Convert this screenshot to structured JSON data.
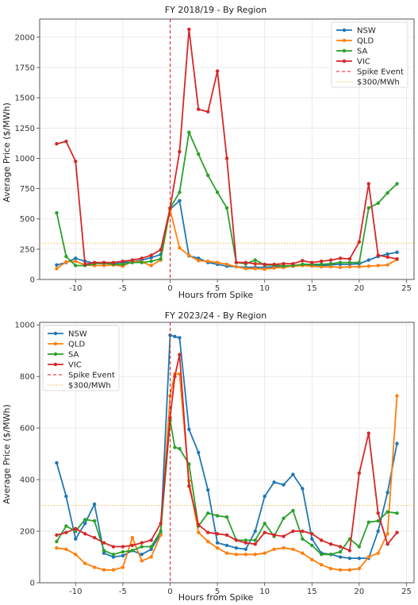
{
  "colors": {
    "NSW": "#1f77b4",
    "QLD": "#ff7f0e",
    "SA": "#2ca02c",
    "VIC": "#d62728",
    "spike": "#e41a1c",
    "threshold": "#f2b84b"
  },
  "chart_data": [
    {
      "type": "line",
      "title": "FY 2018/19 - By Region",
      "xlabel": "Hours from Spike",
      "ylabel": "Average Price ($/MWh)",
      "xlim": [
        -13.8,
        25.8
      ],
      "ylim": [
        0,
        2150
      ],
      "xticks": [
        -10,
        -5,
        0,
        5,
        10,
        15,
        20,
        25
      ],
      "yticks": [
        0,
        250,
        500,
        750,
        1000,
        1250,
        1500,
        1750,
        2000
      ],
      "grid": true,
      "legend_position": "top-right",
      "legend": [
        "NSW",
        "QLD",
        "SA",
        "VIC",
        "Spike Event",
        "$300/MWh"
      ],
      "spike_x": 0,
      "threshold_y": 300,
      "x": [
        -12,
        -11,
        -10,
        -9,
        -8,
        -7,
        -6,
        -5,
        -4,
        -3,
        -2,
        -1,
        0,
        1,
        2,
        3,
        4,
        5,
        6,
        7,
        8,
        9,
        10,
        11,
        12,
        13,
        14,
        15,
        16,
        17,
        18,
        19,
        20,
        21,
        22,
        23,
        24
      ],
      "series": [
        {
          "name": "NSW",
          "values": [
            120,
            140,
            175,
            150,
            135,
            130,
            135,
            140,
            145,
            160,
            180,
            205,
            580,
            650,
            195,
            175,
            140,
            125,
            110,
            105,
            100,
            100,
            100,
            105,
            110,
            110,
            120,
            120,
            115,
            120,
            125,
            125,
            130,
            160,
            190,
            210,
            225
          ]
        },
        {
          "name": "QLD",
          "values": [
            90,
            145,
            150,
            120,
            115,
            115,
            120,
            110,
            150,
            145,
            115,
            160,
            575,
            260,
            200,
            155,
            150,
            140,
            125,
            105,
            90,
            90,
            85,
            95,
            100,
            110,
            115,
            110,
            105,
            105,
            100,
            105,
            105,
            110,
            115,
            120,
            165
          ]
        },
        {
          "name": "SA",
          "values": [
            550,
            190,
            115,
            115,
            130,
            135,
            125,
            125,
            140,
            140,
            150,
            170,
            590,
            720,
            1215,
            1035,
            860,
            720,
            590,
            140,
            130,
            160,
            120,
            120,
            110,
            115,
            125,
            125,
            125,
            130,
            140,
            140,
            140,
            590,
            630,
            715,
            790
          ]
        },
        {
          "name": "VIC",
          "values": [
            1120,
            1140,
            975,
            125,
            140,
            140,
            140,
            150,
            160,
            175,
            200,
            245,
            590,
            1055,
            2065,
            1405,
            1385,
            1720,
            1000,
            140,
            140,
            130,
            125,
            125,
            130,
            130,
            155,
            140,
            150,
            160,
            175,
            170,
            310,
            790,
            200,
            185,
            170
          ]
        }
      ]
    },
    {
      "type": "line",
      "title": "FY 2023/24 - By Region",
      "xlabel": "Hours from Spike",
      "ylabel": "Average Price ($/MWh)",
      "xlim": [
        -13.8,
        25.8
      ],
      "ylim": [
        0,
        1010
      ],
      "xticks": [
        -10,
        -5,
        0,
        5,
        10,
        15,
        20,
        25
      ],
      "yticks": [
        0,
        200,
        400,
        600,
        800,
        1000
      ],
      "grid": true,
      "legend_position": "top-left",
      "legend": [
        "NSW",
        "QLD",
        "SA",
        "VIC",
        "Spike Event",
        "$300/MWh"
      ],
      "spike_x": 0,
      "threshold_y": 300,
      "x": [
        -12,
        -11,
        -10,
        -9,
        -8,
        -7,
        -6,
        -5,
        -4,
        -3,
        -2,
        -1,
        0,
        0.5,
        1,
        2,
        3,
        4,
        5,
        6,
        7,
        8,
        9,
        10,
        11,
        12,
        13,
        14,
        15,
        16,
        17,
        18,
        19,
        20,
        21,
        22,
        23,
        24
      ],
      "series": [
        {
          "name": "NSW",
          "values": [
            465,
            335,
            170,
            230,
            305,
            115,
            100,
            105,
            125,
            110,
            130,
            190,
            960,
            955,
            950,
            595,
            505,
            360,
            155,
            145,
            135,
            130,
            200,
            335,
            390,
            380,
            420,
            365,
            170,
            115,
            110,
            100,
            95,
            95,
            95,
            200,
            350,
            540
          ]
        },
        {
          "name": "QLD",
          "values": [
            135,
            130,
            110,
            75,
            60,
            50,
            50,
            60,
            175,
            85,
            100,
            185,
            725,
            810,
            810,
            395,
            195,
            160,
            135,
            115,
            110,
            110,
            110,
            115,
            130,
            135,
            130,
            115,
            90,
            70,
            55,
            50,
            50,
            55,
            100,
            115,
            190,
            725
          ]
        },
        {
          "name": "SA",
          "values": [
            160,
            220,
            200,
            245,
            240,
            125,
            110,
            120,
            125,
            140,
            140,
            200,
            630,
            525,
            520,
            460,
            220,
            270,
            260,
            255,
            165,
            165,
            165,
            230,
            180,
            250,
            280,
            170,
            145,
            110,
            110,
            120,
            170,
            140,
            235,
            240,
            275,
            270
          ]
        },
        {
          "name": "VIC",
          "values": [
            185,
            195,
            210,
            190,
            175,
            155,
            140,
            140,
            145,
            155,
            165,
            230,
            640,
            800,
            885,
            375,
            225,
            195,
            190,
            185,
            165,
            155,
            150,
            195,
            185,
            180,
            200,
            200,
            190,
            165,
            150,
            140,
            125,
            425,
            580,
            270,
            150,
            195
          ]
        }
      ]
    }
  ]
}
